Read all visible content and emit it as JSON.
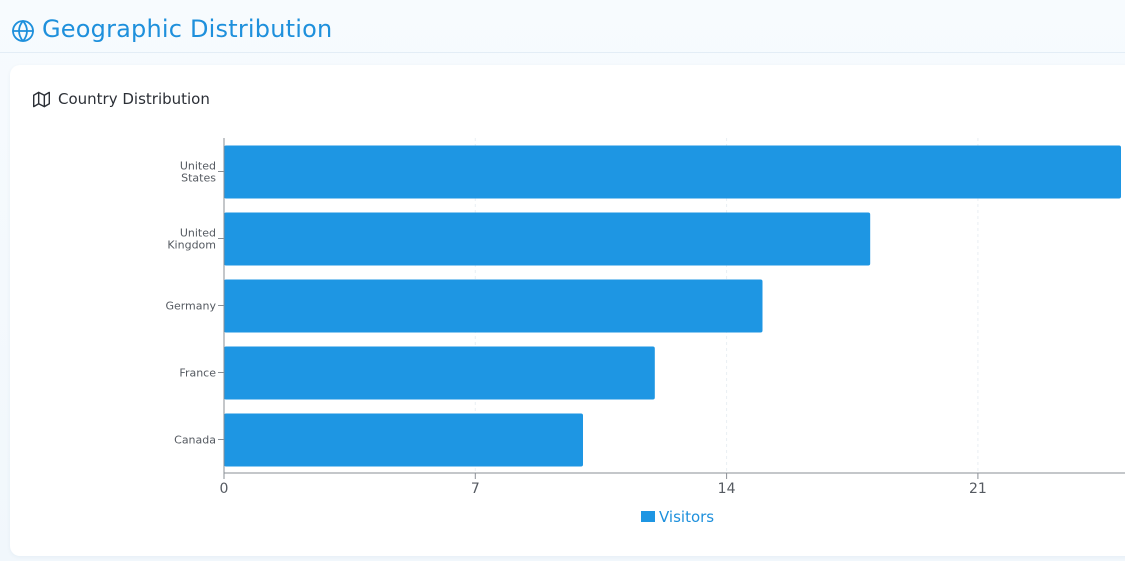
{
  "header": {
    "title": "Geographic Distribution",
    "icon": "globe-icon"
  },
  "card": {
    "title": "Country Distribution",
    "icon": "map-icon"
  },
  "colors": {
    "accent": "#1e90dc",
    "bar": "#1e96e3",
    "axis": "#8a8f96",
    "grid": "#e9eef3",
    "tick_text": "#555a61"
  },
  "chart_data": {
    "type": "bar",
    "orientation": "horizontal",
    "categories": [
      "United States",
      "United Kingdom",
      "Germany",
      "France",
      "Canada"
    ],
    "category_lines": [
      [
        "United",
        "States"
      ],
      [
        "United",
        "Kingdom"
      ],
      [
        "Germany"
      ],
      [
        "France"
      ],
      [
        "Canada"
      ]
    ],
    "series": [
      {
        "name": "Visitors",
        "values": [
          25,
          18,
          15,
          12,
          10
        ]
      }
    ],
    "xticks": [
      0,
      7,
      14,
      21
    ],
    "xlim": [
      0,
      25
    ],
    "title": "",
    "xlabel": "",
    "ylabel": "",
    "grid": "vertical dashed",
    "legend": "bottom-center"
  }
}
